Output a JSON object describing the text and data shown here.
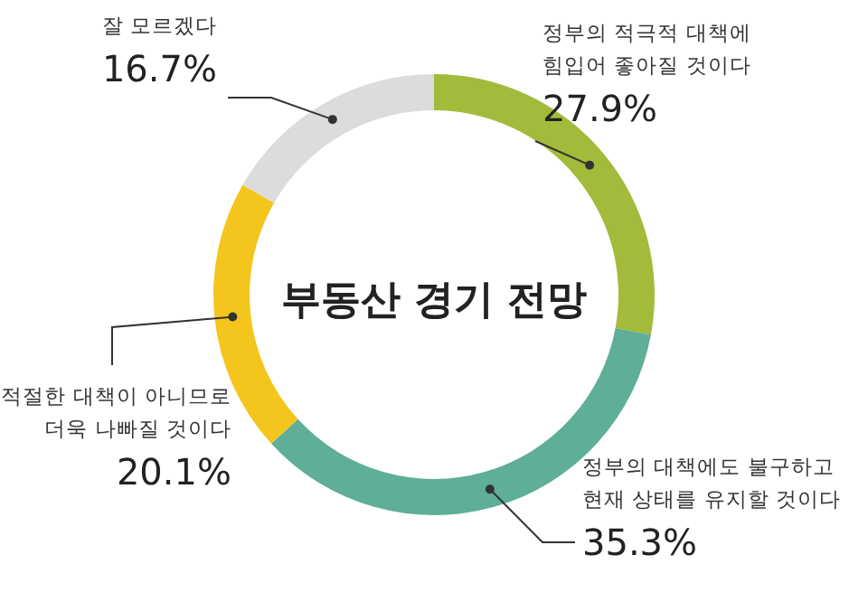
{
  "chart_data": {
    "type": "donut",
    "title": "부동산 경기 전망",
    "categories": [
      "정부의 적극적 대책에\n힘입어 좋아질 것이다",
      "정부의 대책에도 불구하고\n현재 상태를 유지할 것이다",
      "적절한 대책이 아니므로\n더욱 나빠질 것이다",
      "잘 모르겠다"
    ],
    "values": [
      27.9,
      35.3,
      20.1,
      16.7
    ],
    "value_labels": [
      "27.9%",
      "35.3%",
      "20.1%",
      "16.7%"
    ],
    "colors": [
      "#a3bb3b",
      "#5eae98",
      "#f4c51c",
      "#dcdcdc"
    ]
  }
}
